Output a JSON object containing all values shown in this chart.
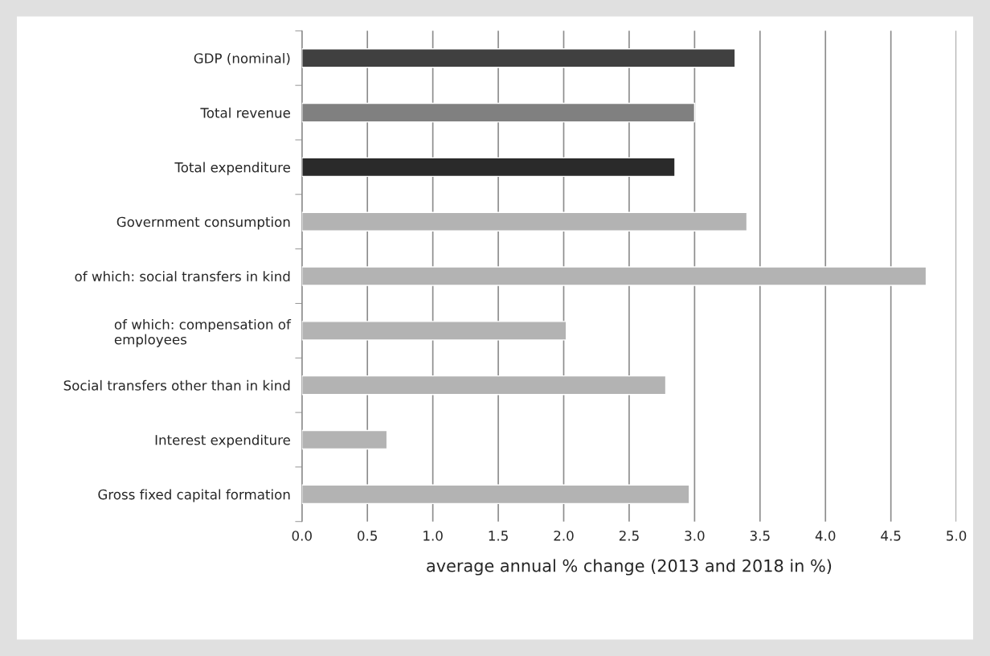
{
  "chart_data": {
    "type": "bar",
    "orientation": "horizontal",
    "categories": [
      "GDP (nominal)",
      "Total revenue",
      "Total expenditure",
      "Government consumption",
      "of which: social transfers in kind",
      "of which: compensation of\nemployees",
      "Social transfers other than in kind",
      "Interest expenditure",
      "Gross fixed capital formation"
    ],
    "values": [
      3.31,
      3.0,
      2.85,
      3.4,
      4.77,
      2.02,
      2.78,
      0.65,
      2.96
    ],
    "colors": [
      "#404040",
      "#808080",
      "#2a2a2a",
      "#b3b3b3",
      "#b3b3b3",
      "#b3b3b3",
      "#b3b3b3",
      "#b3b3b3",
      "#b3b3b3"
    ],
    "xlabel": "average annual % change (2013 and 2018 in %)",
    "xlim": [
      0,
      5
    ],
    "xticks": [
      {
        "value": 0,
        "label": "0.0"
      },
      {
        "value": 0.5,
        "label": "0.5"
      },
      {
        "value": 1,
        "label": "1.0"
      },
      {
        "value": 1.5,
        "label": "1.5"
      },
      {
        "value": 2,
        "label": "2.0"
      },
      {
        "value": 2.5,
        "label": "2.5"
      },
      {
        "value": 3,
        "label": "3.0"
      },
      {
        "value": 3.5,
        "label": "3.5"
      },
      {
        "value": 4,
        "label": "4.0"
      },
      {
        "value": 4.5,
        "label": "4.5"
      },
      {
        "value": 5,
        "label": "5.0"
      }
    ],
    "grid": "x",
    "legend": false
  }
}
